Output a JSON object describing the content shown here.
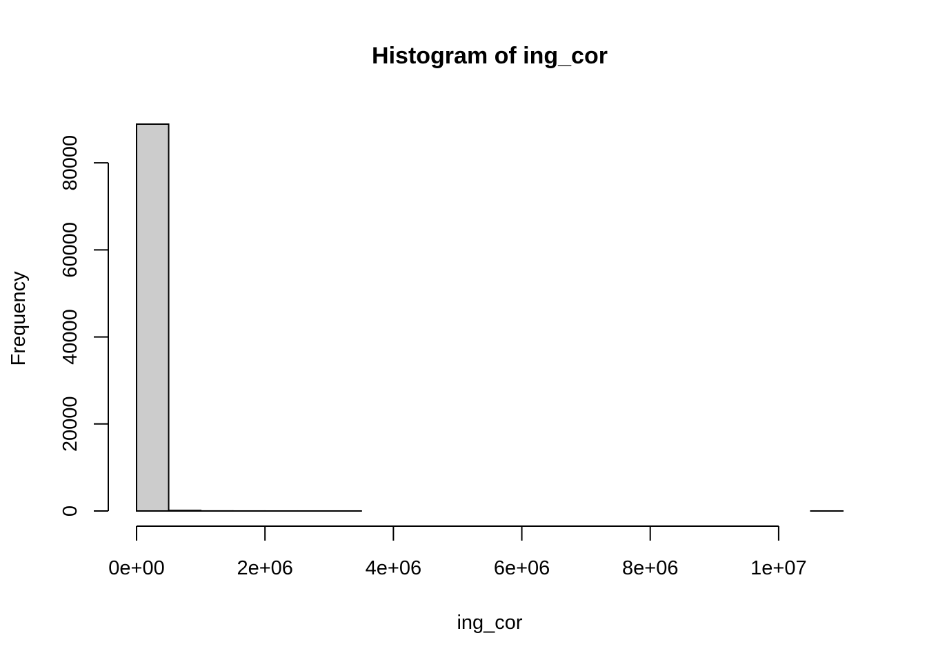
{
  "chart_data": {
    "type": "bar",
    "title": "Histogram of ing_cor",
    "xlabel": "ing_cor",
    "ylabel": "Frequency",
    "bar_color": "#cccccc",
    "border_color": "#000000",
    "bin_width": 500000,
    "bins": [
      {
        "start": 0,
        "end": 500000,
        "count": 88900
      },
      {
        "start": 500000,
        "end": 1000000,
        "count": 120
      },
      {
        "start": 1000000,
        "end": 1500000,
        "count": 15
      },
      {
        "start": 1500000,
        "end": 2000000,
        "count": 5
      },
      {
        "start": 2000000,
        "end": 2500000,
        "count": 2
      },
      {
        "start": 2500000,
        "end": 3000000,
        "count": 1
      },
      {
        "start": 3000000,
        "end": 3500000,
        "count": 1
      },
      {
        "start": 3500000,
        "end": 4000000,
        "count": 0
      },
      {
        "start": 4000000,
        "end": 4500000,
        "count": 0
      },
      {
        "start": 4500000,
        "end": 5000000,
        "count": 0
      },
      {
        "start": 5000000,
        "end": 5500000,
        "count": 0
      },
      {
        "start": 5500000,
        "end": 6000000,
        "count": 0
      },
      {
        "start": 6000000,
        "end": 6500000,
        "count": 0
      },
      {
        "start": 6500000,
        "end": 7000000,
        "count": 0
      },
      {
        "start": 7000000,
        "end": 7500000,
        "count": 0
      },
      {
        "start": 7500000,
        "end": 8000000,
        "count": 0
      },
      {
        "start": 8000000,
        "end": 8500000,
        "count": 0
      },
      {
        "start": 8500000,
        "end": 9000000,
        "count": 0
      },
      {
        "start": 9000000,
        "end": 9500000,
        "count": 0
      },
      {
        "start": 9500000,
        "end": 10000000,
        "count": 0
      },
      {
        "start": 10000000,
        "end": 10500000,
        "count": 0
      },
      {
        "start": 10500000,
        "end": 11000000,
        "count": 1
      }
    ],
    "x_ticks": [
      {
        "value": 0,
        "label": "0e+00"
      },
      {
        "value": 2000000,
        "label": "2e+06"
      },
      {
        "value": 4000000,
        "label": "4e+06"
      },
      {
        "value": 6000000,
        "label": "6e+06"
      },
      {
        "value": 8000000,
        "label": "8e+06"
      },
      {
        "value": 10000000,
        "label": "1e+07"
      }
    ],
    "y_ticks": [
      {
        "value": 0,
        "label": "0"
      },
      {
        "value": 20000,
        "label": "20000"
      },
      {
        "value": 40000,
        "label": "40000"
      },
      {
        "value": 60000,
        "label": "60000"
      },
      {
        "value": 80000,
        "label": "80000"
      }
    ],
    "xlim": [
      0,
      11000000
    ],
    "ylim": [
      0,
      88900
    ],
    "grid": false,
    "legend": "none"
  }
}
